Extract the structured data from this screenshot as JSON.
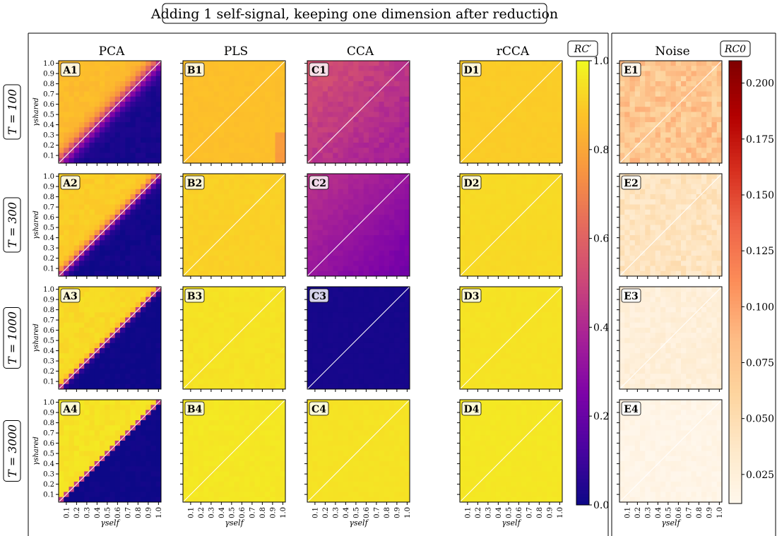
{
  "title": "Adding 1 self-signal, keeping one dimension after reduction",
  "columns": [
    "PCA",
    "PLS",
    "CCA",
    "rCCA",
    "Noise"
  ],
  "row_labels": [
    "T = 100",
    "T = 300",
    "T = 1000",
    "T = 3000"
  ],
  "panel_labels": [
    [
      "A1",
      "B1",
      "C1",
      "D1",
      "E1"
    ],
    [
      "A2",
      "B2",
      "C2",
      "D2",
      "E2"
    ],
    [
      "A3",
      "B3",
      "C3",
      "D3",
      "E3"
    ],
    [
      "A4",
      "B4",
      "C4",
      "D4",
      "E4"
    ]
  ],
  "xlabel": "γself",
  "ylabel": "γshared",
  "ticks": [
    "0.1",
    "0.2",
    "0.3",
    "0.4",
    "0.5",
    "0.6",
    "0.7",
    "0.8",
    "0.9",
    "1.0"
  ],
  "colorbar_main": {
    "label": "RC′",
    "colormap": "plasma",
    "range": [
      0,
      1
    ],
    "ticks": [
      "0.0",
      "0.2",
      "0.4",
      "0.6",
      "0.8",
      "1.0"
    ]
  },
  "colorbar_noise": {
    "label": "RC0",
    "colormap": "OrRd",
    "range": [
      0.012,
      0.21
    ],
    "ticks": [
      "0.025",
      "0.050",
      "0.075",
      "0.100",
      "0.125",
      "0.150",
      "0.175",
      "0.200"
    ]
  },
  "chart_data": {
    "type": "heatmap",
    "grid": "20 x 20 cells per panel, gamma_self and gamma_shared from 0.05 to 1.0",
    "diagonal_line": "white line y = x drawn in every panel",
    "models": {
      "PCA": {
        "description": "near 0.95 above diagonal, near 0 below diagonal; transition sharpens as T grows",
        "T100": {
          "above": 0.86,
          "below": 0.02,
          "transition_width": 0.22
        },
        "T300": {
          "above": 0.9,
          "below": 0.01,
          "transition_width": 0.12
        },
        "T1000": {
          "above": 0.93,
          "below": 0.0,
          "transition_width": 0.07
        },
        "T3000": {
          "above": 0.95,
          "below": 0.0,
          "transition_width": 0.04
        }
      },
      "PLS": {
        "T100": 0.87,
        "T300": 0.91,
        "T1000": 0.95,
        "T3000": 0.96
      },
      "CCA": {
        "T100": 0.45,
        "T300": 0.33,
        "T1000": 0.02,
        "T3000": 0.95
      },
      "rCCA": {
        "T100": 0.9,
        "T300": 0.93,
        "T1000": 0.95,
        "T3000": 0.96
      },
      "Noise": {
        "T100": 0.075,
        "T300": 0.042,
        "T1000": 0.025,
        "T3000": 0.016
      }
    }
  }
}
